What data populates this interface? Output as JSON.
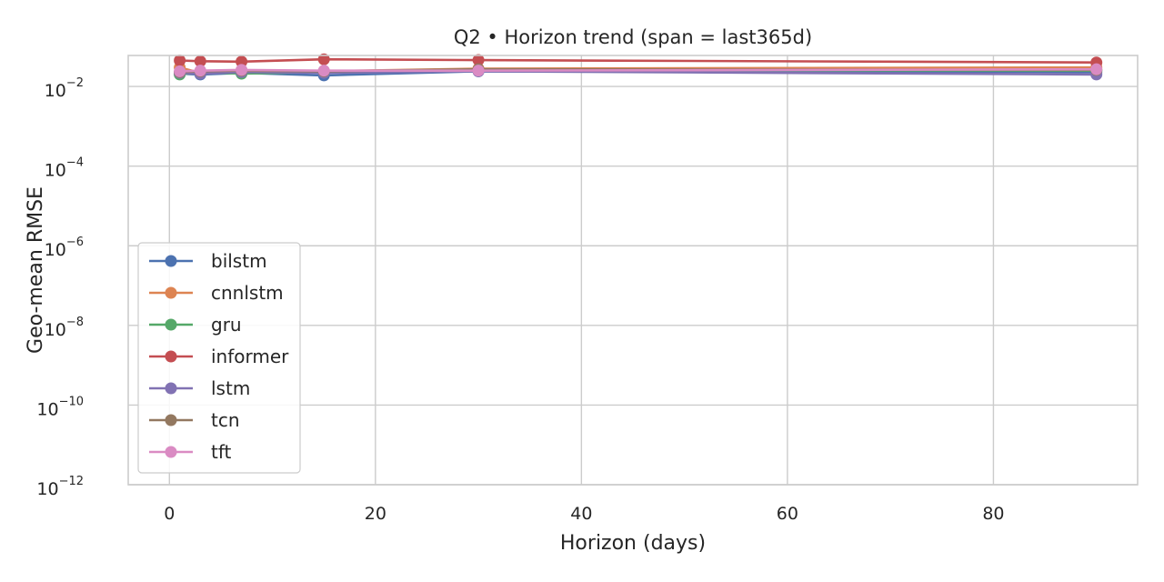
{
  "chart_data": {
    "type": "line",
    "title": "Q2 • Horizon trend  (span = last365d)",
    "xlabel": "Horizon (days)",
    "ylabel": "Geo-mean RMSE",
    "xlim": [
      -4,
      94
    ],
    "ylim": [
      1e-12,
      0.06
    ],
    "yscale": "log",
    "xticks": [
      0,
      20,
      40,
      60,
      80
    ],
    "yticks": [
      {
        "base": "10",
        "exp": "−12",
        "value": 1e-12
      },
      {
        "base": "10",
        "exp": "−10",
        "value": 1e-10
      },
      {
        "base": "10",
        "exp": "−8",
        "value": 1e-08
      },
      {
        "base": "10",
        "exp": "−6",
        "value": 1e-06
      },
      {
        "base": "10",
        "exp": "−4",
        "value": 0.0001
      },
      {
        "base": "10",
        "exp": "−2",
        "value": 0.01
      }
    ],
    "grid": true,
    "legend_position": "lower-left",
    "x": [
      1,
      3,
      7,
      15,
      30,
      90
    ],
    "series": [
      {
        "name": "bilstm",
        "color": "#4c72b0",
        "values": [
          0.021,
          0.02,
          0.022,
          0.019,
          0.024,
          0.023
        ]
      },
      {
        "name": "cnnlstm",
        "color": "#dd8452",
        "values": [
          0.03,
          0.022,
          0.025,
          0.024,
          0.028,
          0.03
        ]
      },
      {
        "name": "gru",
        "color": "#55a868",
        "values": [
          0.02,
          0.023,
          0.021,
          0.023,
          0.026,
          0.025
        ]
      },
      {
        "name": "informer",
        "color": "#c44e52",
        "values": [
          0.045,
          0.043,
          0.042,
          0.048,
          0.046,
          0.04
        ]
      },
      {
        "name": "lstm",
        "color": "#8172b3",
        "values": [
          0.022,
          0.021,
          0.023,
          0.022,
          0.024,
          0.02
        ]
      },
      {
        "name": "tcn",
        "color": "#937860",
        "values": [
          0.023,
          0.024,
          0.025,
          0.024,
          0.027,
          0.026
        ]
      },
      {
        "name": "tft",
        "color": "#da8bc3",
        "values": [
          0.024,
          0.025,
          0.026,
          0.025,
          0.025,
          0.027
        ]
      }
    ]
  }
}
